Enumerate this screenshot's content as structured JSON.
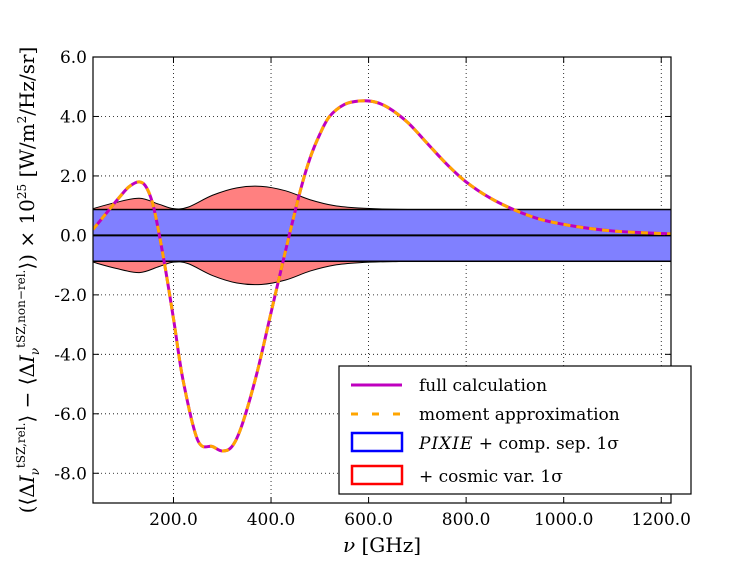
{
  "chart_data": {
    "type": "line",
    "title": "",
    "xlabel": "ν [GHz]",
    "ylabel": "(⟨ΔI_ν^tSZ,rel.⟩ − ⟨ΔI_ν^tSZ,non−rel.⟩) × 10^25 [W/m²/Hz/sr]",
    "xlim": [
      35,
      1220
    ],
    "ylim": [
      -9.0,
      6.0
    ],
    "grid": true,
    "x_ticks": [
      200,
      400,
      600,
      800,
      1000,
      1200
    ],
    "x_tick_labels": [
      "200.0",
      "400.0",
      "600.0",
      "800.0",
      "1000.0",
      "1200.0"
    ],
    "y_ticks": [
      -8,
      -6,
      -4,
      -2,
      0,
      2,
      4,
      6
    ],
    "y_tick_labels": [
      "-8.0",
      "-6.0",
      "-4.0",
      "-2.0",
      "0.0",
      "2.0",
      "4.0",
      "6.0"
    ],
    "legend_position": "lower-right",
    "series": [
      {
        "name": "full calculation",
        "style": "solid",
        "color": "#bf00bf",
        "x": [
          35,
          60,
          90,
          110,
          130,
          145,
          160,
          180,
          200,
          220,
          250,
          280,
          300,
          320,
          340,
          370,
          400,
          430,
          460,
          480,
          500,
          520,
          550,
          580,
          610,
          640,
          680,
          720,
          760,
          800,
          850,
          900,
          950,
          1000,
          1050,
          1100,
          1150,
          1220
        ],
        "y": [
          0.2,
          0.7,
          1.3,
          1.65,
          1.8,
          1.6,
          0.9,
          -0.8,
          -2.8,
          -4.9,
          -6.9,
          -7.1,
          -7.25,
          -7.1,
          -6.4,
          -4.7,
          -2.6,
          -0.5,
          1.5,
          2.6,
          3.4,
          4.0,
          4.4,
          4.52,
          4.5,
          4.3,
          3.8,
          3.1,
          2.4,
          1.8,
          1.25,
          0.85,
          0.55,
          0.37,
          0.24,
          0.15,
          0.1,
          0.05
        ]
      },
      {
        "name": "moment approximation",
        "style": "dashed",
        "color": "#ffa500",
        "x": [
          35,
          60,
          90,
          110,
          130,
          145,
          160,
          180,
          200,
          220,
          250,
          280,
          300,
          320,
          340,
          370,
          400,
          430,
          460,
          480,
          500,
          520,
          550,
          580,
          610,
          640,
          680,
          720,
          760,
          800,
          850,
          900,
          950,
          1000,
          1050,
          1100,
          1150,
          1220
        ],
        "y": [
          0.2,
          0.7,
          1.3,
          1.65,
          1.8,
          1.6,
          0.9,
          -0.8,
          -2.8,
          -4.9,
          -6.9,
          -7.1,
          -7.25,
          -7.1,
          -6.4,
          -4.7,
          -2.6,
          -0.5,
          1.5,
          2.6,
          3.4,
          4.0,
          4.4,
          4.52,
          4.5,
          4.3,
          3.8,
          3.1,
          2.4,
          1.8,
          1.25,
          0.85,
          0.55,
          0.37,
          0.24,
          0.15,
          0.1,
          0.05
        ]
      }
    ],
    "bands": [
      {
        "name": "+ cosmic var. 1σ",
        "color": "#ff8080",
        "edge_color": "#ff0000",
        "x": [
          35,
          80,
          130,
          170,
          200,
          230,
          280,
          330,
          380,
          430,
          480,
          530,
          580,
          650,
          750,
          1220
        ],
        "upper": [
          0.9,
          1.1,
          1.25,
          1.05,
          0.9,
          0.95,
          1.35,
          1.6,
          1.65,
          1.5,
          1.2,
          1.0,
          0.92,
          0.88,
          0.87,
          0.87
        ]
      },
      {
        "name": "PIXIE + comp. sep. 1σ",
        "color": "#8080ff",
        "edge_color": "#0000ff",
        "upper_const": 0.87
      }
    ]
  },
  "legend": {
    "items": [
      {
        "label": "full calculation"
      },
      {
        "label": "moment approximation"
      },
      {
        "label_italic": "PIXIE",
        "label_rest": " + comp. sep. 1σ"
      },
      {
        "label": "+ cosmic var. 1σ"
      }
    ]
  }
}
